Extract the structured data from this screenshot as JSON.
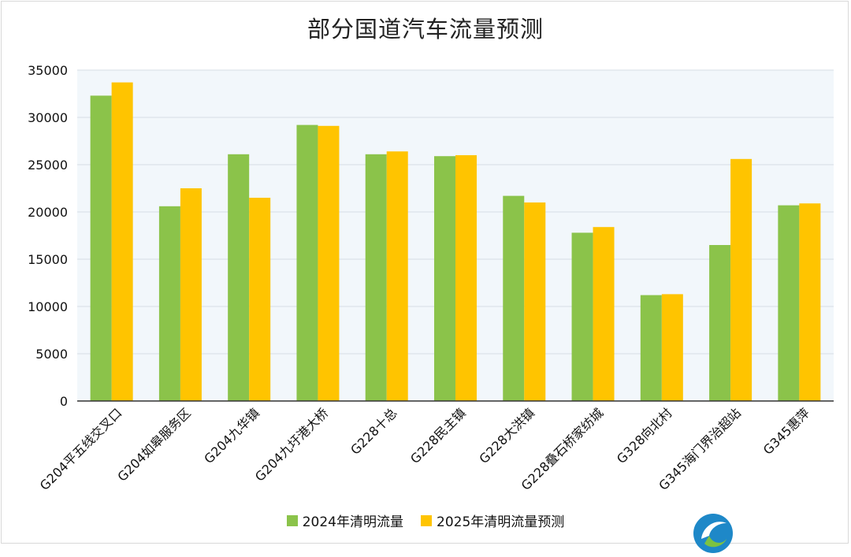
{
  "chart_data": {
    "type": "bar",
    "title": "部分国道汽车流量预测",
    "xlabel": "",
    "ylabel": "",
    "ylim": [
      0,
      35000
    ],
    "yticks": [
      0,
      5000,
      10000,
      15000,
      20000,
      25000,
      30000,
      35000
    ],
    "grid": true,
    "legend_position": "bottom",
    "categories": [
      "G204平五线交叉口",
      "G204如皋服务区",
      "G204九华镇",
      "G204九圩港大桥",
      "G228十总",
      "G228民主镇",
      "G228大洪镇",
      "G228叠石桥家纺城",
      "G328向北村",
      "G345海门界治超站",
      "G345惠萍"
    ],
    "series": [
      {
        "name": "2024年清明流量",
        "color": "#8bc34a",
        "values": [
          32300,
          20600,
          26100,
          29200,
          26100,
          25900,
          21700,
          17800,
          11200,
          16500,
          20700
        ]
      },
      {
        "name": "2025年清明流量预测",
        "color": "#ffc400",
        "values": [
          33700,
          22500,
          21500,
          29100,
          26400,
          26000,
          21000,
          18400,
          11300,
          25600,
          20900
        ]
      }
    ]
  }
}
